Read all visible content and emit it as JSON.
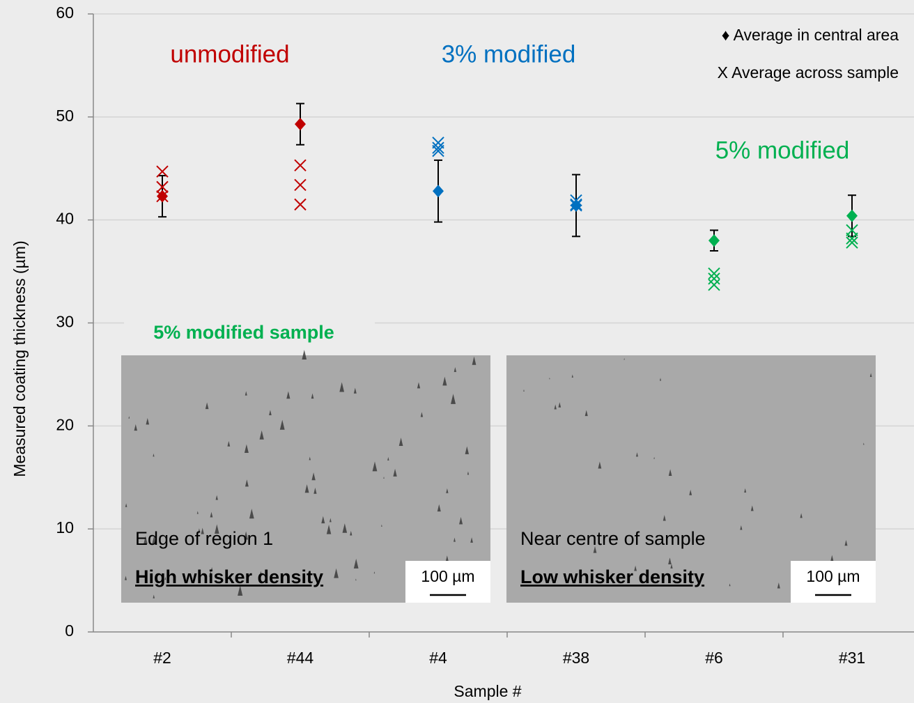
{
  "chart_data": {
    "type": "scatter",
    "categories": [
      "#2",
      "#44",
      "#4",
      "#38",
      "#6",
      "#31"
    ],
    "point_colors": [
      "#c00000",
      "#c00000",
      "#0070c0",
      "#0070c0",
      "#00b050",
      "#00b050"
    ],
    "series": [
      {
        "name": "♦ Average in central area",
        "marker": "diamond",
        "values": [
          42.3,
          49.3,
          42.8,
          41.4,
          38.0,
          40.4
        ],
        "errors": [
          2.0,
          2.0,
          3.0,
          3.0,
          1.0,
          2.0
        ]
      },
      {
        "name": "X Average across sample",
        "marker": "cross",
        "values": [
          [
            44.7,
            43.2,
            42.3
          ],
          [
            45.3,
            43.4,
            41.5
          ],
          [
            47.5,
            47.0,
            46.7
          ],
          [
            41.9,
            41.5,
            41.4
          ],
          [
            34.8,
            34.3,
            33.7
          ],
          [
            39.0,
            38.2,
            37.8
          ]
        ]
      }
    ],
    "ylabel": "Measured coating  thickness (µm)",
    "xlabel": "Sample  #",
    "ylim": [
      0,
      60
    ],
    "yticks": [
      0,
      10,
      20,
      30,
      40,
      50,
      60
    ],
    "grid": true,
    "legend": "upper right",
    "annotations": [
      {
        "text": "unmodified",
        "color": "#c00000"
      },
      {
        "text": "3% modified",
        "color": "#0070c0"
      },
      {
        "text": "5% modified",
        "color": "#00b050"
      }
    ],
    "inset": {
      "title": "5% modified sample",
      "panels": [
        {
          "caption": "Edge of region 1",
          "label": "High whisker density",
          "scale": "100 µm"
        },
        {
          "caption": "Near centre of sample",
          "label": "Low whisker density",
          "scale": "100 µm"
        }
      ]
    }
  }
}
